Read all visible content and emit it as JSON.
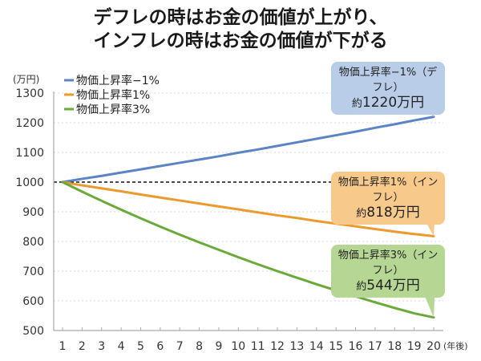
{
  "title": {
    "line1": "デフレの時はお金の価値が上がり、",
    "line2": "インフレの時はお金の価値が下がる"
  },
  "chart_data": {
    "type": "line",
    "title": "デフレの時はお金の価値が上がり、インフレの時はお金の価値が下がる",
    "xlabel": "(年後)",
    "ylabel": "(万円)",
    "x": [
      1,
      2,
      3,
      4,
      5,
      6,
      7,
      8,
      9,
      10,
      11,
      12,
      13,
      14,
      15,
      16,
      17,
      18,
      19,
      20
    ],
    "ylim": [
      500,
      1300
    ],
    "yticks": [
      500,
      600,
      700,
      800,
      900,
      1000,
      1100,
      1200,
      1300
    ],
    "grid": true,
    "reference_line": 1000,
    "legend_position": "top-left",
    "series": [
      {
        "name": "物価上昇率−1%",
        "color": "#5b84c4",
        "values": [
          1000,
          1011,
          1021,
          1032,
          1043,
          1054,
          1065,
          1076,
          1087,
          1099,
          1110,
          1122,
          1134,
          1146,
          1158,
          1170,
          1183,
          1195,
          1208,
          1220
        ]
      },
      {
        "name": "物価上昇率1%",
        "color": "#eb9b2d",
        "values": [
          1000,
          989,
          979,
          969,
          958,
          948,
          938,
          928,
          918,
          908,
          898,
          888,
          879,
          869,
          860,
          851,
          842,
          833,
          825,
          818
        ]
      },
      {
        "name": "物価上昇率3%",
        "color": "#6aa93a",
        "values": [
          1000,
          968,
          937,
          907,
          878,
          850,
          823,
          797,
          772,
          747,
          723,
          700,
          678,
          656,
          635,
          615,
          595,
          576,
          558,
          544
        ]
      }
    ],
    "annotations": [
      {
        "series": "物価上昇率−1%",
        "label": "物価上昇率−1%（デフレ）",
        "value_prefix": "約",
        "value": "1220万円",
        "bg": "#b9cde8"
      },
      {
        "series": "物価上昇率1%",
        "label": "物価上昇率1%（インフレ）",
        "value_prefix": "約",
        "value": "818万円",
        "bg": "#f7c98a"
      },
      {
        "series": "物価上昇率3%",
        "label": "物価上昇率3%（インフレ）",
        "value_prefix": "約",
        "value": "544万円",
        "bg": "#b5d793"
      }
    ]
  }
}
